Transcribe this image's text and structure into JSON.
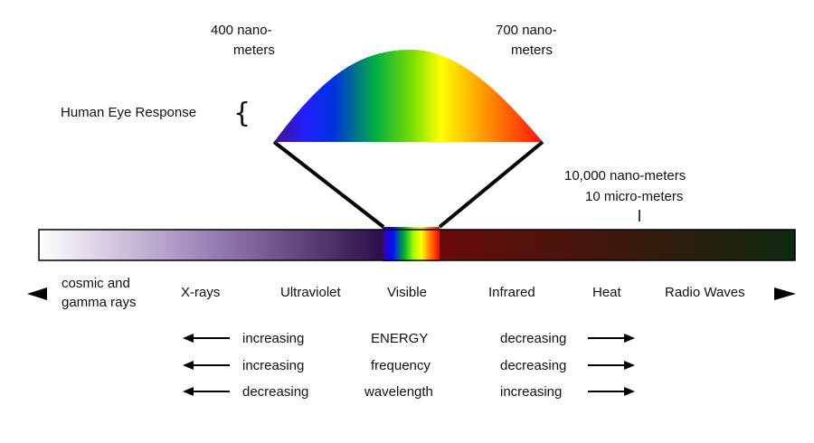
{
  "eye_response": {
    "label": "Human Eye Response",
    "left_top": "400 nano-",
    "left_bottom": "meters",
    "right_top": "700 nano-",
    "right_bottom": "meters"
  },
  "scale_note": {
    "line1": "10,000 nano-meters",
    "line2": "10 micro-meters"
  },
  "bands": {
    "cosmic_line1": "cosmic and",
    "cosmic_line2": "gamma rays",
    "xrays": "X-rays",
    "ultraviolet": "Ultraviolet",
    "visible": "Visible",
    "infrared": "Infrared",
    "heat": "Heat",
    "radio": "Radio Waves"
  },
  "trends": [
    {
      "left": "increasing",
      "center": "ENERGY",
      "right": "decreasing"
    },
    {
      "left": "increasing",
      "center": "frequency",
      "right": "decreasing"
    },
    {
      "left": "decreasing",
      "center": "wavelength",
      "right": "increasing"
    }
  ],
  "colors": {
    "uv_band": "#3d1a5e",
    "ir_band": "#5a0808",
    "radio_band": "#0f2a0f",
    "arrow": "#111111"
  }
}
